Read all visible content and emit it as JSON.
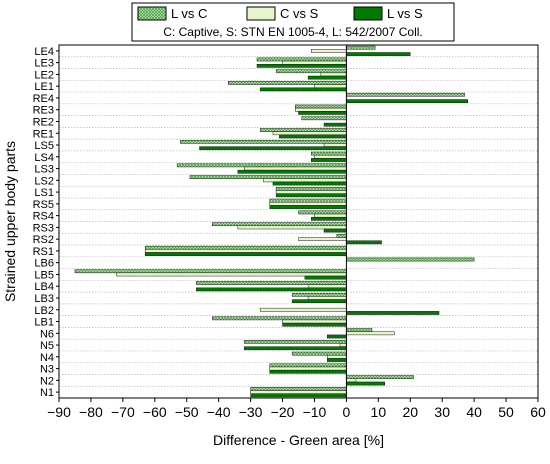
{
  "chart_data": {
    "type": "bar",
    "orientation": "horizontal",
    "xlabel": "Difference - Green area [%]",
    "ylabel": "Strained upper body parts",
    "xlim": [
      -90,
      60
    ],
    "xticks": [
      -90,
      -80,
      -70,
      -60,
      -50,
      -40,
      -30,
      -20,
      -10,
      0,
      10,
      20,
      30,
      40,
      50,
      60
    ],
    "grid": "horizontal dotted",
    "legend_placement": "top",
    "legend_note": "C: Captive, S: STN EN 1005-4, L: 542/2007 Coll.",
    "categories": [
      "LE4",
      "LE3",
      "LE2",
      "LE1",
      "RE4",
      "RE3",
      "RE2",
      "RE1",
      "LS5",
      "LS4",
      "LS3",
      "LS2",
      "LS1",
      "RS5",
      "RS4",
      "RS3",
      "RS2",
      "RS1",
      "LB6",
      "LB5",
      "LB4",
      "LB3",
      "LB2",
      "LB1",
      "N6",
      "N5",
      "N4",
      "N3",
      "N2",
      "N1"
    ],
    "series": [
      {
        "name": "L vs C",
        "color": "#5cb85c",
        "pattern": "crosshatch",
        "values": [
          9,
          -28,
          -22,
          -37,
          37,
          -16,
          -14,
          -27,
          -52,
          -11,
          -53,
          -49,
          -22,
          -24,
          -15,
          -42,
          -3,
          -63,
          40,
          -85,
          -47,
          -17,
          0,
          -42,
          8,
          -32,
          -17,
          -24,
          21,
          -30
        ]
      },
      {
        "name": "C vs S",
        "color": "#e6f5cc",
        "pattern": "solid",
        "values": [
          -11,
          -20,
          -8,
          -10,
          0,
          -16,
          0,
          -23,
          -7,
          -10,
          -32,
          -26,
          -22,
          -24,
          -10,
          -34,
          -15,
          -63,
          0,
          -72,
          -12,
          -12,
          -27,
          -20,
          15,
          -2,
          -6,
          -24,
          3,
          -30
        ]
      },
      {
        "name": "L vs S",
        "color": "#007a00",
        "pattern": "solid",
        "values": [
          20,
          -28,
          -12,
          -27,
          38,
          -15,
          -7,
          -21,
          -46,
          -11,
          -34,
          -23,
          -22,
          -24,
          -11,
          -7,
          11,
          -63,
          0,
          -13,
          -47,
          -17,
          29,
          -20,
          -6,
          -32,
          -6,
          -24,
          12,
          -30
        ]
      }
    ]
  }
}
